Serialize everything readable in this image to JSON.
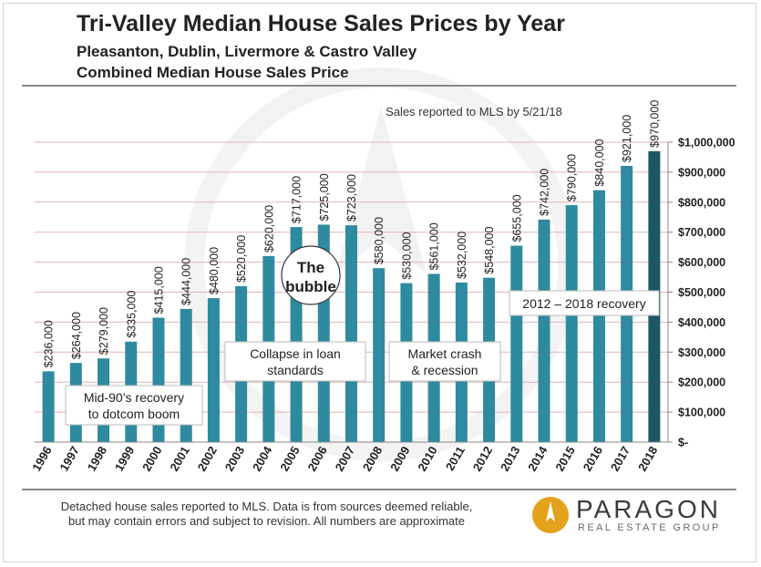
{
  "header": {
    "title": "Tri-Valley Median House Sales Prices by Year",
    "subtitle1": "Pleasanton, Dublin, Livermore & Castro Valley",
    "subtitle2": "Combined Median House Sales Price"
  },
  "chart_data": {
    "type": "bar",
    "title": "Tri-Valley Median House Sales Prices by Year",
    "xlabel": "",
    "ylabel": "Combined Median House Sales Price",
    "categories": [
      "1996",
      "1997",
      "1998",
      "1999",
      "2000",
      "2001",
      "2002",
      "2003",
      "2004",
      "2005",
      "2006",
      "2007",
      "2008",
      "2009",
      "2010",
      "2011",
      "2012",
      "2013",
      "2014",
      "2015",
      "2016",
      "2017",
      "2018"
    ],
    "values": [
      236000,
      264000,
      279000,
      335000,
      415000,
      444000,
      480000,
      520000,
      620000,
      717000,
      725000,
      723000,
      580000,
      530000,
      561000,
      532000,
      548000,
      655000,
      742000,
      790000,
      840000,
      921000,
      970000
    ],
    "data_labels": [
      "$236,000",
      "$264,000",
      "$279,000",
      "$335,000",
      "$415,000",
      "$444,000",
      "$480,000",
      "$520,000",
      "$620,000",
      "$717,000",
      "$725,000",
      "$723,000",
      "$580,000",
      "$530,000",
      "$561,000",
      "$532,000",
      "$548,000",
      "$655,000",
      "$742,000",
      "$790,000",
      "$840,000",
      "$921,000",
      "$970,000"
    ],
    "ylim": [
      0,
      1000000
    ],
    "y_ticks": [
      0,
      100000,
      200000,
      300000,
      400000,
      500000,
      600000,
      700000,
      800000,
      900000,
      1000000
    ],
    "y_tick_labels": [
      "$-",
      "$100,000",
      "$200,000",
      "$300,000",
      "$400,000",
      "$500,000",
      "$600,000",
      "$700,000",
      "$800,000",
      "$900,000",
      "$1,000,000"
    ],
    "y_axis_side": "right",
    "grid": true,
    "colors": {
      "bar": "#2e8a9e",
      "highlight": "#1d5766",
      "grid": "#e3b5b5"
    },
    "highlight_index": 22,
    "annotations": {
      "sales_note": "Sales reported to MLS by 5/21/18",
      "bubble_line1": "The",
      "bubble_line2": "bubble",
      "loan_line1": "Collapse in loan",
      "loan_line2": "standards",
      "crash_line1": "Market crash",
      "crash_line2": "& recession",
      "recovery90_line1": "Mid-90’s recovery",
      "recovery90_line2": "to dotcom boom",
      "recovery2012": "2012 – 2018 recovery"
    }
  },
  "footer": {
    "note_line1": "Detached house sales reported to MLS. Data is from sources deemed reliable,",
    "note_line2": "but may contain errors and subject to revision. All numbers are approximate",
    "logo_name": "PARAGON",
    "logo_sub": "REAL ESTATE GROUP",
    "logo_color": "#e4a21c"
  }
}
